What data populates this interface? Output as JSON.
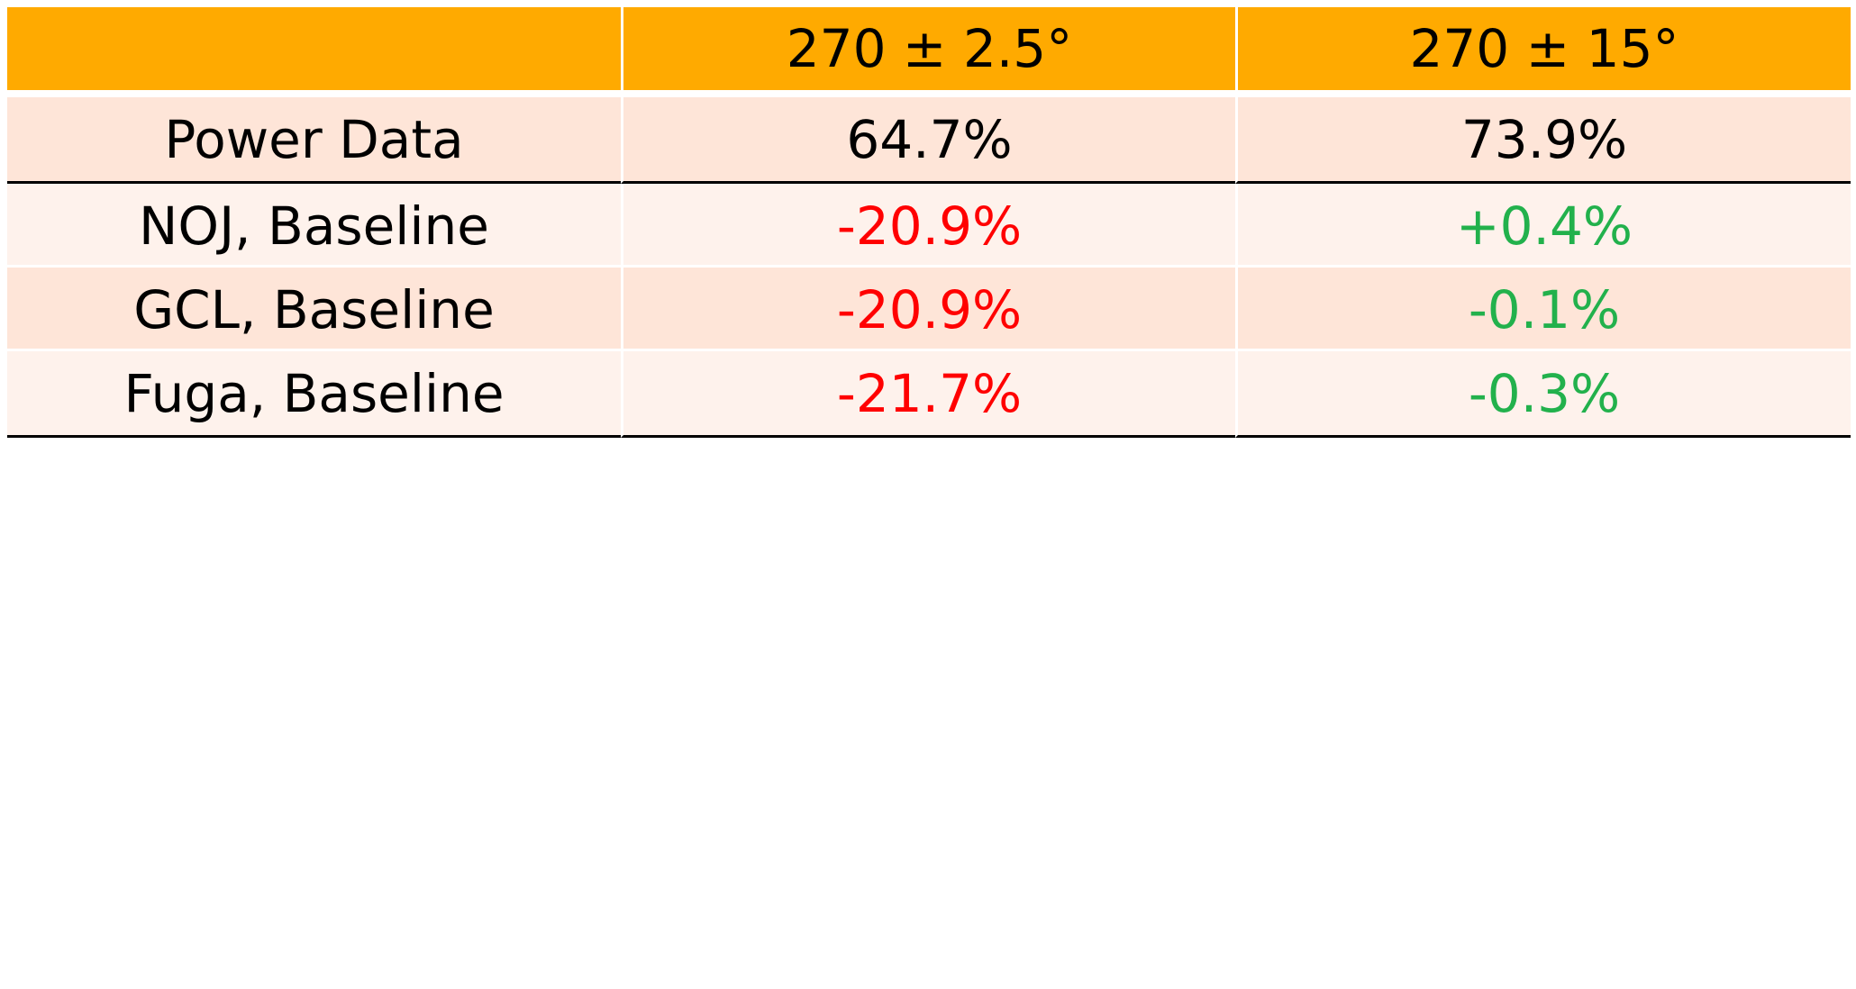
{
  "table": {
    "header_fill": "#FFAA00",
    "row_fills": [
      "#FEE5D8",
      "#FEF2EC"
    ],
    "headers": [
      "",
      "270 ± 2.5°",
      "270 ± 15°"
    ],
    "rows": [
      {
        "label": "Power Data",
        "cells": [
          {
            "text": "64.7%",
            "color": "#000000"
          },
          {
            "text": "73.9%",
            "color": "#000000"
          }
        ]
      },
      {
        "label": "NOJ, Baseline",
        "cells": [
          {
            "text": "-20.9%",
            "color": "#FF0000"
          },
          {
            "text": "+0.4%",
            "color": "#22B14C"
          }
        ]
      },
      {
        "label": "GCL, Baseline",
        "cells": [
          {
            "text": "-20.9%",
            "color": "#FF0000"
          },
          {
            "text": "-0.1%",
            "color": "#22B14C"
          }
        ]
      },
      {
        "label": "Fuga, Baseline",
        "cells": [
          {
            "text": "-21.7%",
            "color": "#FF0000"
          },
          {
            "text": "-0.3%",
            "color": "#22B14C"
          }
        ]
      }
    ]
  }
}
